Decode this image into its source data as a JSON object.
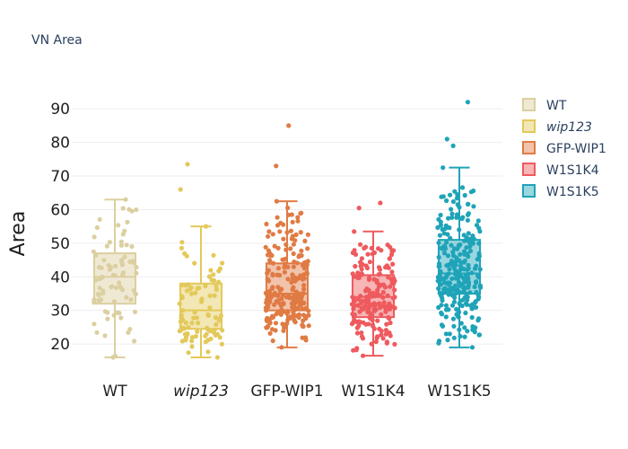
{
  "chart_data": {
    "type": "box",
    "title": "VN Area",
    "ylabel": "Area",
    "xlabel": "",
    "ylim": [
      12,
      93
    ],
    "yticks": [
      20,
      30,
      40,
      50,
      60,
      70,
      80,
      90
    ],
    "grid": true,
    "legend_position": "right",
    "categories": [
      "WT",
      "wip123",
      "GFP-WIP1",
      "W1S1K4",
      "W1S1K5"
    ],
    "series": [
      {
        "name": "WT",
        "italic": false,
        "color": "#dccfa0",
        "min": 16,
        "q1": 32,
        "median": 40,
        "q3": 47,
        "max": 63,
        "n": 80,
        "seed": 11,
        "outliers": []
      },
      {
        "name": "wip123",
        "italic": true,
        "color": "#e3c95a",
        "min": 16,
        "q1": 24.5,
        "median": 30,
        "q3": 38,
        "max": 55,
        "n": 90,
        "seed": 23,
        "outliers": [
          66,
          73.5
        ]
      },
      {
        "name": "GFP-WIP1",
        "italic": false,
        "color": "#e07b44",
        "min": 19,
        "q1": 30,
        "median": 35,
        "q3": 44,
        "max": 62.5,
        "n": 220,
        "seed": 37,
        "outliers": [
          73,
          85
        ]
      },
      {
        "name": "W1S1K4",
        "italic": false,
        "color": "#ee5a5e",
        "min": 16.5,
        "q1": 28,
        "median": 34,
        "q3": 40.5,
        "max": 53.5,
        "n": 180,
        "seed": 41,
        "outliers": [
          60.5,
          62
        ]
      },
      {
        "name": "W1S1K5",
        "italic": false,
        "color": "#1fa3b8",
        "min": 19,
        "q1": 35,
        "median": 41,
        "q3": 51,
        "max": 72.5,
        "n": 260,
        "seed": 59,
        "outliers": [
          79,
          81,
          92
        ]
      }
    ]
  }
}
